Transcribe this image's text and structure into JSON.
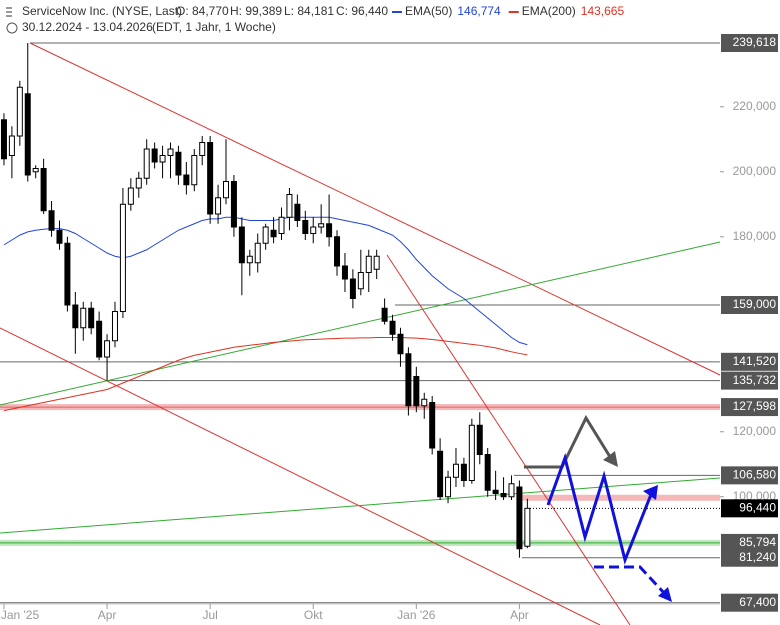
{
  "header": {
    "title": "ServiceNow Inc. (NYSE, Last)",
    "open": "O: 84,770",
    "high": "H: 99,389",
    "low": "L: 84,181",
    "close": "C: 96,440",
    "range": "30.12.2024 - 13.04.2026",
    "info": "(EDT, 1 Jahr, 1 Woche)"
  },
  "chart_data": {
    "type": "candlestick",
    "categories": [
      "Jan '25",
      null,
      null,
      null,
      null,
      null,
      null,
      null,
      null,
      null,
      null,
      null,
      null,
      "Apr",
      null,
      null,
      null,
      null,
      null,
      null,
      null,
      null,
      null,
      null,
      null,
      null,
      "Jul",
      null,
      null,
      null,
      null,
      null,
      null,
      null,
      null,
      null,
      null,
      null,
      null,
      "Okt",
      null,
      null,
      null,
      null,
      null,
      null,
      null,
      null,
      null,
      null,
      null,
      null,
      "Jan '26",
      null,
      null,
      null,
      null,
      null,
      null,
      null,
      null,
      null,
      null,
      null,
      null,
      "Apr",
      null
    ],
    "open": [
      216,
      205,
      211,
      224,
      200,
      201,
      188,
      182,
      178,
      159,
      152,
      158,
      154,
      143,
      148,
      157,
      190,
      195,
      198,
      207,
      203,
      205,
      206,
      199,
      196,
      205,
      209,
      187,
      192,
      197,
      183,
      172,
      172,
      178,
      182,
      181,
      186,
      190,
      185,
      181,
      183,
      184,
      180,
      171,
      167,
      164,
      169,
      170,
      158,
      154,
      150,
      144,
      137,
      128,
      129,
      114,
      100,
      106,
      110,
      105,
      122,
      113,
      102,
      101,
      100,
      103,
      84.77
    ],
    "high": [
      218,
      214,
      228,
      239.618,
      202,
      204,
      191,
      185,
      180,
      163,
      160,
      160,
      157,
      150,
      160,
      195,
      198,
      200,
      210,
      209,
      208,
      209,
      208,
      203,
      207,
      211,
      211,
      196,
      210,
      199,
      186,
      176,
      181,
      184,
      186,
      189,
      195,
      193,
      188,
      186,
      190,
      193,
      182,
      175,
      170,
      176,
      176,
      176,
      161,
      156,
      152,
      146,
      140,
      132,
      131,
      118,
      108,
      115,
      112,
      124,
      126,
      115,
      108,
      106,
      106.58,
      105,
      99.389
    ],
    "low": [
      202,
      198,
      208,
      197,
      198,
      187,
      180,
      176,
      157,
      144,
      148,
      150,
      142,
      135.732,
      146,
      155,
      188,
      192,
      196,
      201,
      198,
      198,
      196,
      193,
      194,
      202,
      184,
      184,
      190,
      180,
      162,
      168,
      169,
      176,
      178,
      179,
      182,
      183,
      179,
      178,
      181,
      177,
      168,
      163,
      158,
      162,
      163,
      167,
      153,
      148,
      140,
      125,
      126,
      124,
      113,
      99,
      98,
      103,
      103,
      104,
      110,
      100,
      99,
      99,
      99,
      81.24,
      84.181
    ],
    "close": [
      204,
      211,
      226,
      199,
      201,
      188,
      182,
      178,
      159,
      152,
      158,
      152,
      143,
      148,
      157,
      190,
      195,
      198,
      207,
      203,
      205,
      207,
      199,
      196,
      205,
      209,
      187,
      192,
      197,
      183,
      172,
      174,
      178,
      183,
      180,
      186,
      193,
      185,
      181,
      183,
      184,
      180,
      171,
      167,
      161,
      169,
      174,
      174,
      154,
      150,
      144,
      128,
      128,
      130,
      115,
      100,
      106,
      110,
      105,
      122,
      113,
      102,
      101,
      100,
      104,
      84,
      96.44
    ],
    "series": [
      {
        "name": "EMA(50)",
        "color": "#2244dd",
        "legend_value": "146,774",
        "values": [
          177.5,
          179,
          180.5,
          181.5,
          182,
          182.3,
          182.5,
          182.5,
          182,
          181,
          179.5,
          178,
          176.5,
          175,
          174,
          173.5,
          174,
          175,
          176,
          177.5,
          179,
          180.5,
          182,
          183,
          184,
          185,
          185.5,
          185.5,
          186,
          186,
          185.5,
          185,
          185,
          185,
          185,
          185.5,
          186,
          186,
          186,
          186,
          186,
          186,
          185.5,
          185,
          184.5,
          184,
          183.5,
          182.5,
          181.5,
          180.5,
          178.5,
          176,
          173,
          170.5,
          168,
          166,
          164,
          162.5,
          161,
          159,
          157,
          155,
          153,
          151,
          149,
          147.5,
          146.774
        ]
      },
      {
        "name": "EMA(200)",
        "color": "#dd3322",
        "legend_value": "143,665",
        "values": [
          126.5,
          127,
          127.5,
          128,
          128.5,
          129,
          129.5,
          130,
          130.5,
          131,
          131.5,
          132,
          132.5,
          133,
          134,
          135,
          136,
          137,
          138,
          139,
          140,
          141,
          142,
          142.8,
          143.5,
          144,
          144.5,
          145,
          145.5,
          146,
          146.3,
          146.6,
          146.9,
          147.2,
          147.5,
          147.7,
          147.9,
          148.1,
          148.3,
          148.4,
          148.5,
          148.6,
          148.7,
          148.8,
          148.8,
          148.9,
          148.9,
          149,
          149,
          149,
          149,
          148.9,
          148.8,
          148.6,
          148.4,
          148.1,
          147.8,
          147.5,
          147.2,
          146.9,
          146.6,
          146.2,
          145.8,
          145.2,
          144.6,
          144.1,
          143.665
        ]
      }
    ],
    "ylim": [
      60.54,
      252.85
    ],
    "yticks": [
      {
        "value": 220,
        "label": "220,000"
      },
      {
        "value": 200,
        "label": "200,000"
      },
      {
        "value": 180,
        "label": "180,000"
      },
      {
        "value": 120,
        "label": "120,000"
      },
      {
        "value": 100,
        "label": "100,000"
      }
    ],
    "levels": [
      {
        "value": 239.618,
        "label": "239,618"
      },
      {
        "value": 159,
        "label": "159,000"
      },
      {
        "value": 141.52,
        "label": "141,520"
      },
      {
        "value": 135.732,
        "label": "135,732"
      },
      {
        "value": 127.598,
        "label": "127,598"
      },
      {
        "value": 106.58,
        "label": "106,580"
      },
      {
        "value": 85.794,
        "label": "85,794"
      },
      {
        "value": 81.24,
        "label": "81,240"
      },
      {
        "value": 67.4,
        "label": "67,400"
      }
    ],
    "last_price": {
      "value": 96.44,
      "label": "96,440"
    }
  }
}
